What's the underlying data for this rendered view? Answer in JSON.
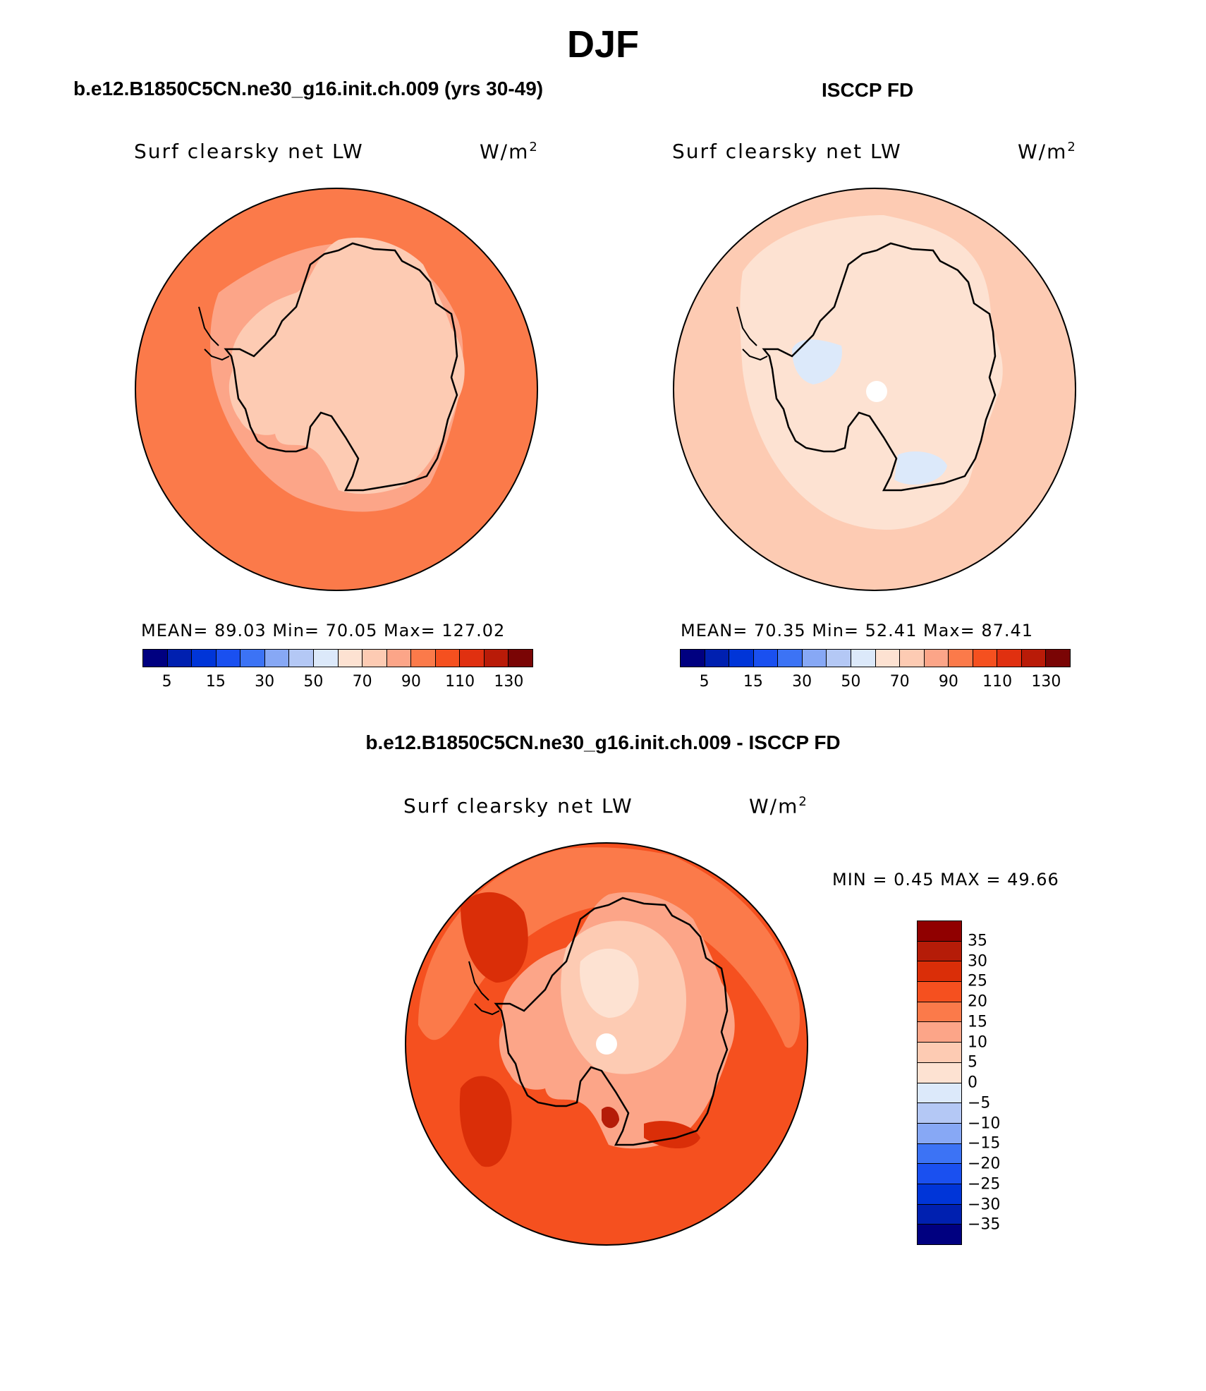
{
  "figure": {
    "season": "DJF"
  },
  "colors": {
    "abs_scale": [
      "#000080",
      "#0020b0",
      "#0035d8",
      "#1a50f0",
      "#3c73f5",
      "#87a8f5",
      "#b4c8f5",
      "#dce9fa",
      "#fde2d2",
      "#fdcbb3",
      "#fca588",
      "#fb7a4a",
      "#f5501f",
      "#e03010",
      "#b91b08",
      "#7a0505"
    ],
    "diff_scale": [
      "#900000",
      "#b51c08",
      "#da2e08",
      "#f5501f",
      "#fb7a4a",
      "#fca588",
      "#fdcbb3",
      "#fde2d2",
      "#dce9fa",
      "#b4c8f5",
      "#87a8f5",
      "#3c73f5",
      "#1a50f0",
      "#0035d8",
      "#0020b0",
      "#000080"
    ]
  },
  "panel_model": {
    "title": "b.e12.B1850C5CN.ne30_g16.init.ch.009 (yrs 30-49)",
    "variable": "Surf clearsky net LW",
    "units": "W/m",
    "units_sup": "2",
    "stats_text": "MEAN=   89.03   Min=   70.05   Max=  127.02",
    "cbar_labels": [
      "5",
      "15",
      "30",
      "50",
      "70",
      "90",
      "110",
      "130"
    ],
    "fill": "#fb7a4a",
    "land_fill": "#fdcbb3"
  },
  "panel_obs": {
    "title": "ISCCP FD",
    "variable": "Surf clearsky net LW",
    "units": "W/m",
    "units_sup": "2",
    "stats_text": "MEAN=   70.35   Min=   52.41   Max=   87.41",
    "cbar_labels": [
      "5",
      "15",
      "30",
      "50",
      "70",
      "90",
      "110",
      "130"
    ],
    "fill": "#fdcbb3",
    "land_fill": "#fde2d2"
  },
  "panel_diff": {
    "title": "b.e12.B1850C5CN.ne30_g16.init.ch.009 - ISCCP FD",
    "variable": "Surf clearsky net LW",
    "units": "W/m",
    "units_sup": "2",
    "minmax_text": "MIN =    0.45  MAX =   49.66",
    "cbar_labels": [
      "35",
      "30",
      "25",
      "20",
      "15",
      "10",
      "5",
      "0",
      "−5",
      "−10",
      "−15",
      "−20",
      "−25",
      "−30",
      "−35"
    ],
    "fill": "#f5501f",
    "land_fill": "#fca588"
  }
}
